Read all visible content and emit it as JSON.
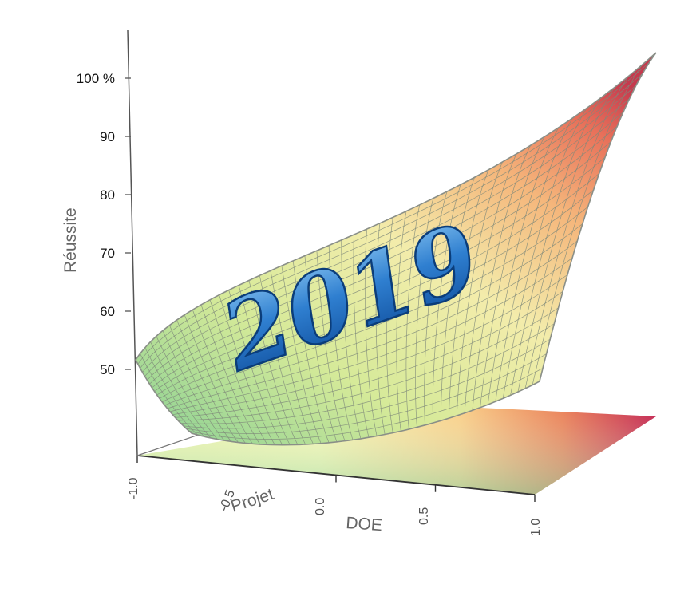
{
  "chart_data": {
    "type": "surface",
    "title": "",
    "zlabel": "Réussite",
    "xlabel": "DOE",
    "ylabel": "Projet",
    "z_ticks": [
      "100 %",
      "90",
      "80",
      "70",
      "60",
      "50"
    ],
    "z_tick_values": [
      100,
      90,
      80,
      70,
      60,
      50
    ],
    "x_ticks": [
      "-1.0",
      "0.0",
      "0.5",
      "1.0"
    ],
    "x_tick_values": [
      -1.0,
      0.0,
      0.5,
      1.0
    ],
    "y_ticks": [
      "-0.5"
    ],
    "y_tick_values": [
      -0.5
    ],
    "x_range": [
      -1.0,
      1.0
    ],
    "y_range": [
      -1.0,
      1.0
    ],
    "z_range": [
      45,
      105
    ],
    "surface_corners": [
      {
        "x": -1.0,
        "y": 1.0,
        "z": 51
      },
      {
        "x": 1.0,
        "y": 1.0,
        "z": 104
      },
      {
        "x": -1.0,
        "y": -1.0,
        "z": 50
      },
      {
        "x": 1.0,
        "y": -1.0,
        "z": 60
      }
    ],
    "colormap": [
      "#6fc9a4",
      "#d9ef9f",
      "#f6f0a8",
      "#f4c277",
      "#e07048",
      "#c4204c"
    ],
    "mesh_color": "#7f8a7a",
    "annotation": "2019",
    "annotation_color": "#1a64b4"
  }
}
